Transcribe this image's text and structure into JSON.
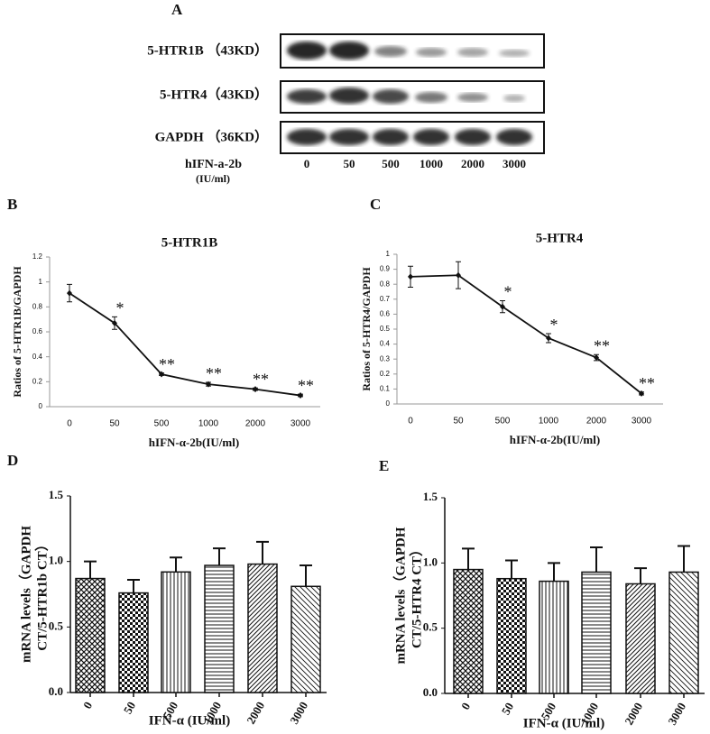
{
  "panel_labels": [
    "A",
    "B",
    "C",
    "D",
    "E"
  ],
  "blot": {
    "rows": [
      "5-HTR1B （43KD）",
      "5-HTR4（43KD）",
      "GAPDH （36KD）"
    ],
    "treatment": "hIFN-a-2b",
    "unit": "(IU/ml)",
    "doses": [
      "0",
      "50",
      "500",
      "1000",
      "2000",
      "3000"
    ]
  },
  "chart_data": [
    {
      "type": "line",
      "title": "5-HTR1B",
      "ylabel": "Ratios of 5-HTR1B/GAPDH",
      "xlabel": "hIFN-α-2b(IU/ml)",
      "categories": [
        "0",
        "50",
        "500",
        "1000",
        "2000",
        "3000"
      ],
      "values": [
        0.91,
        0.67,
        0.26,
        0.18,
        0.14,
        0.09
      ],
      "errors": [
        0.07,
        0.05,
        0.01,
        0.015,
        0.01,
        0.01
      ],
      "significance": [
        null,
        "*",
        "**",
        "**",
        "**",
        "**"
      ],
      "color": "#111111",
      "ylim": [
        0,
        1.2
      ],
      "yticks": [
        0,
        0.2,
        0.4,
        0.6,
        0.8,
        1,
        1.2
      ]
    },
    {
      "type": "line",
      "title": "5-HTR4",
      "ylabel": "Ratios of 5-HTR4/GAPDH",
      "xlabel": "hIFN-α-2b(IU/ml)",
      "categories": [
        "0",
        "50",
        "500",
        "1000",
        "2000",
        "3000"
      ],
      "values": [
        0.85,
        0.86,
        0.65,
        0.44,
        0.31,
        0.07
      ],
      "errors": [
        0.07,
        0.09,
        0.04,
        0.03,
        0.02,
        0.01
      ],
      "significance": [
        null,
        null,
        "*",
        "*",
        "**",
        "**"
      ],
      "color": "#111111",
      "ylim": [
        0,
        1
      ],
      "yticks": [
        0,
        0.1,
        0.2,
        0.3,
        0.4,
        0.5,
        0.6,
        0.7,
        0.8,
        0.9,
        1
      ]
    },
    {
      "type": "bar",
      "ylabel": [
        "mRNA levels（GAPDH",
        "CT/5-HTR1b CT）"
      ],
      "xlabel": "IFN-α (IU/ml)",
      "categories": [
        "0",
        "50",
        "500",
        "1000",
        "2000",
        "3000"
      ],
      "values": [
        0.87,
        0.76,
        0.92,
        0.97,
        0.98,
        0.81
      ],
      "errors": [
        0.13,
        0.1,
        0.11,
        0.13,
        0.17,
        0.16
      ],
      "color": "#111111",
      "ylim": [
        0,
        1.5
      ],
      "yticks": [
        {
          "value": 0,
          "label": "0.0"
        },
        {
          "value": 0.5,
          "label": "0.5"
        },
        {
          "value": 1,
          "label": "1.0"
        },
        {
          "value": 1.5,
          "label": "1.5"
        }
      ]
    },
    {
      "type": "bar",
      "ylabel": [
        "mRNA levels（GAPDH",
        "CT/5-HTR4 CT）"
      ],
      "xlabel": "IFN-α (IU/ml)",
      "categories": [
        "0",
        "50",
        "500",
        "1000",
        "2000",
        "3000"
      ],
      "values": [
        0.95,
        0.88,
        0.86,
        0.93,
        0.84,
        0.93
      ],
      "errors": [
        0.16,
        0.14,
        0.14,
        0.19,
        0.12,
        0.2
      ],
      "color": "#111111",
      "ylim": [
        0,
        1.5
      ],
      "yticks": [
        {
          "value": 0,
          "label": "0.0"
        },
        {
          "value": 0.5,
          "label": "0.5"
        },
        {
          "value": 1,
          "label": "1.0"
        },
        {
          "value": 1.5,
          "label": "1.5"
        }
      ]
    }
  ]
}
